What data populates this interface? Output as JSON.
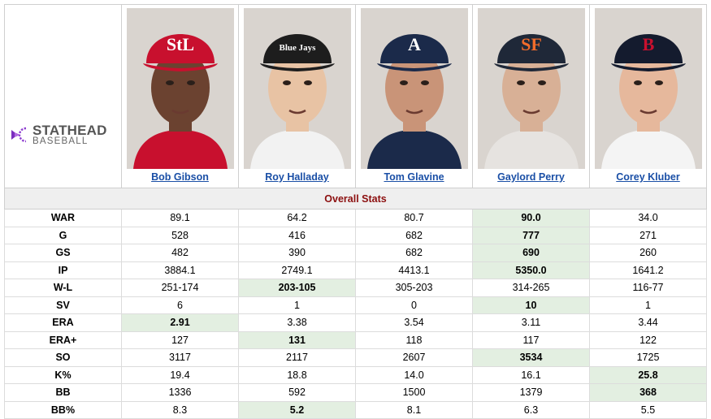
{
  "logo": {
    "top": "STATHEAD",
    "bottom": "BASEBALL"
  },
  "players": [
    {
      "name": "Bob Gibson",
      "cap_color": "#c8102e",
      "cap_logo": "StL",
      "skin": "#6b4230",
      "shirt": "#c8102e"
    },
    {
      "name": "Roy Halladay",
      "cap_color": "#1d1d1d",
      "cap_logo": "Blue Jays",
      "skin": "#e8c3a4",
      "shirt": "#f2f2f2"
    },
    {
      "name": "Tom Glavine",
      "cap_color": "#1b2a4a",
      "cap_logo": "A",
      "skin": "#c99478",
      "shirt": "#1b2a4a"
    },
    {
      "name": "Gaylord Perry",
      "cap_color": "#1f2838",
      "cap_logo": "SF",
      "skin": "#d8b096",
      "shirt": "#e6e3e0"
    },
    {
      "name": "Corey Kluber",
      "cap_color": "#141b2e",
      "cap_logo": "B",
      "skin": "#e6b89c",
      "shirt": "#f4f4f4"
    }
  ],
  "section_title": "Overall Stats",
  "highlight_color": "#e3efe1",
  "stats": [
    {
      "label": "WAR",
      "values": [
        "89.1",
        "64.2",
        "80.7",
        "90.0",
        "34.0"
      ],
      "best": 3
    },
    {
      "label": "G",
      "values": [
        "528",
        "416",
        "682",
        "777",
        "271"
      ],
      "best": 3
    },
    {
      "label": "GS",
      "values": [
        "482",
        "390",
        "682",
        "690",
        "260"
      ],
      "best": 3
    },
    {
      "label": "IP",
      "values": [
        "3884.1",
        "2749.1",
        "4413.1",
        "5350.0",
        "1641.2"
      ],
      "best": 3
    },
    {
      "label": "W-L",
      "values": [
        "251-174",
        "203-105",
        "305-203",
        "314-265",
        "116-77"
      ],
      "best": 1
    },
    {
      "label": "SV",
      "values": [
        "6",
        "1",
        "0",
        "10",
        "1"
      ],
      "best": 3
    },
    {
      "label": "ERA",
      "values": [
        "2.91",
        "3.38",
        "3.54",
        "3.11",
        "3.44"
      ],
      "best": 0
    },
    {
      "label": "ERA+",
      "values": [
        "127",
        "131",
        "118",
        "117",
        "122"
      ],
      "best": 1
    },
    {
      "label": "SO",
      "values": [
        "3117",
        "2117",
        "2607",
        "3534",
        "1725"
      ],
      "best": 3
    },
    {
      "label": "K%",
      "values": [
        "19.4",
        "18.8",
        "14.0",
        "16.1",
        "25.8"
      ],
      "best": 4
    },
    {
      "label": "BB",
      "values": [
        "1336",
        "592",
        "1500",
        "1379",
        "368"
      ],
      "best": 4
    },
    {
      "label": "BB%",
      "values": [
        "8.3",
        "5.2",
        "8.1",
        "6.3",
        "5.5"
      ],
      "best": 1
    }
  ]
}
